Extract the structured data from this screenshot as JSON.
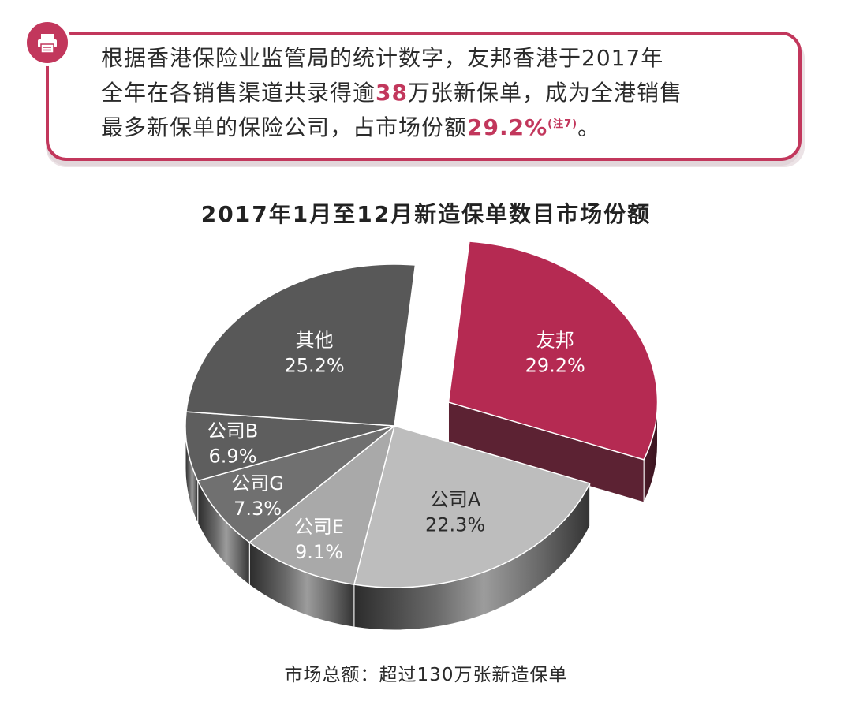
{
  "intro": {
    "line1": "根据香港保险业监管局的统计数字，友邦香港于2017年",
    "line2_pre": "全年在各销售渠道共录得逾",
    "line2_num": "38",
    "line2_post": "万张新保单，成为全港销售",
    "line3_pre": "最多新保单的保险公司，占市场份额",
    "line3_pct": "29.2%",
    "line3_note": "(注7)",
    "line3_end": "。"
  },
  "icon": "printer-icon",
  "colors": {
    "accent": "#c2375c",
    "aia_slice": "#b52a52",
    "company_a": "#bdbdbd",
    "company_e": "#a9a9a9",
    "company_g": "#707070",
    "company_b": "#5e5e5e",
    "others": "#585858"
  },
  "chart_data": {
    "type": "pie",
    "title": "2017年1月至12月新造保单数目市场份额",
    "slices": [
      {
        "label": "友邦",
        "value": 29.2,
        "value_label": "29.2%",
        "exploded": true
      },
      {
        "label": "公司A",
        "value": 22.3,
        "value_label": "22.3%"
      },
      {
        "label": "公司E",
        "value": 9.1,
        "value_label": "9.1%"
      },
      {
        "label": "公司G",
        "value": 7.3,
        "value_label": "7.3%"
      },
      {
        "label": "公司B",
        "value": 6.9,
        "value_label": "6.9%"
      },
      {
        "label": "其他",
        "value": 25.2,
        "value_label": "25.2%"
      }
    ],
    "footer": "市场总额：超过130万张新造保单"
  }
}
